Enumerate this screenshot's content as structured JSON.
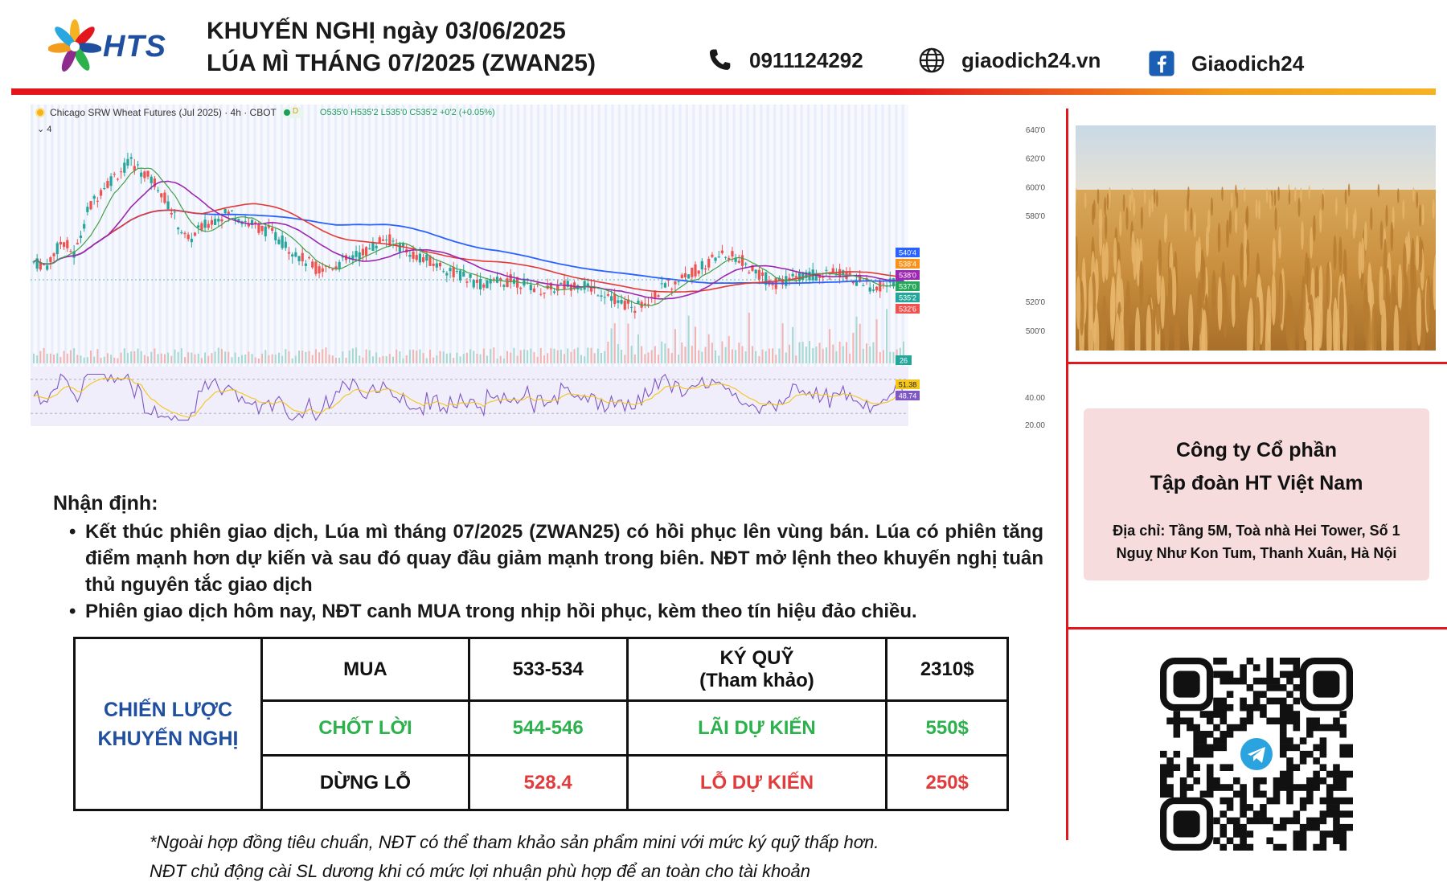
{
  "header": {
    "logo_text": "HTS",
    "title_line1": "KHUYẾN NGHỊ ngày 03/06/2025",
    "title_line2": "LÚA MÌ THÁNG 07/2025 (ZWAN25)",
    "phone": "0911124292",
    "website": "giaodich24.vn",
    "facebook": "Giaodich24",
    "icons": [
      "phone-icon",
      "globe-icon",
      "facebook-icon"
    ],
    "accent_color": "#e3161d",
    "brand_color": "#1f4f9e"
  },
  "chart": {
    "symbol_title": "Chicago SRW Wheat Futures (Jul 2025) · 4h · CBOT",
    "ohlc_text": "O535'0 H535'2 L535'0 C535'2 +0'2 (+0.05%)",
    "collapse_label": "4",
    "price_ticks": [
      "640'0",
      "620'0",
      "600'0",
      "580'0",
      "520'0",
      "500'0"
    ],
    "price_ticks_values": [
      640,
      620,
      600,
      580,
      520,
      500
    ],
    "price_range": [
      477,
      645
    ],
    "price_labels": [
      {
        "text": "540'4",
        "value": 540.5,
        "color": "#2962ff"
      },
      {
        "text": "538'4",
        "value": 538.5,
        "color": "#f7931a"
      },
      {
        "text": "538'0",
        "value": 538.0,
        "color": "#9c27b0"
      },
      {
        "text": "537'0",
        "value": 537.0,
        "color": "#26a65b"
      },
      {
        "text": "535'2",
        "value": 535.25,
        "color": "#26a69a"
      },
      {
        "text": "532'6",
        "value": 532.75,
        "color": "#ef5350"
      }
    ],
    "volume_label": "26",
    "rsi_ticks": [
      "40.00",
      "20.00"
    ],
    "rsi_ticks_values": [
      40,
      20
    ],
    "rsi_labels": [
      {
        "text": "51.38",
        "value": 51.38,
        "color": "#f5c518"
      },
      {
        "text": "48.74",
        "value": 48.74,
        "color": "#7e57c2"
      }
    ],
    "rsi_range": [
      15,
      85
    ]
  },
  "analysis": {
    "title": "Nhận định:",
    "bullets": [
      "Kết thúc phiên giao dịch, Lúa mì tháng 07/2025 (ZWAN25) có hồi phục lên vùng bán. Lúa có phiên tăng điểm mạnh hơn dự kiến và sau đó quay đầu giảm mạnh trong biên. NĐT mở lệnh theo khuyến nghị tuân thủ nguyên tắc giao dịch",
      "Phiên giao dịch hôm nay, NĐT canh MUA trong nhịp hồi phục, kèm theo tín hiệu đảo chiều."
    ]
  },
  "strategy": {
    "header_line1": "CHIẾN LƯỢC",
    "header_line2": "KHUYẾN NGHỊ",
    "row1": {
      "action": "MUA",
      "price": "533-534",
      "margin_label_line1": "KÝ QUỸ",
      "margin_label_line2": "(Tham khảo)",
      "margin_value": "2310$"
    },
    "row2": {
      "action": "CHỐT LỜI",
      "price": "544-546",
      "profit_label": "LÃI DỰ KIẾN",
      "profit_value": "550$"
    },
    "row3": {
      "action": "DỪNG LỖ",
      "price": "528.4",
      "loss_label": "LỖ DỰ KIẾN",
      "loss_value": "250$"
    },
    "colors": {
      "header": "#1f4f9e",
      "profit": "#2bb24c",
      "loss": "#e23b3b"
    }
  },
  "notes": {
    "line1": "*Ngoài hợp đồng tiêu chuẩn, NĐT có thể tham khảo sản phẩm mini với mức ký quỹ thấp hơn.",
    "line2": "NĐT chủ động cài SL dương khi có mức lợi nhuận phù hợp để an toàn cho tài khoản"
  },
  "company": {
    "name_line1": "Công ty Cổ phần",
    "name_line2": "Tập đoàn HT Việt Nam",
    "address_line1": "Địa chỉ: Tầng 5M, Toà nhà Hei Tower, Số 1",
    "address_line2": "Nguỵ Như Kon Tum, Thanh Xuân, Hà Nội"
  },
  "images": {
    "wheat_photo": "wheat-field-image",
    "qr": "telegram-qr-code"
  }
}
